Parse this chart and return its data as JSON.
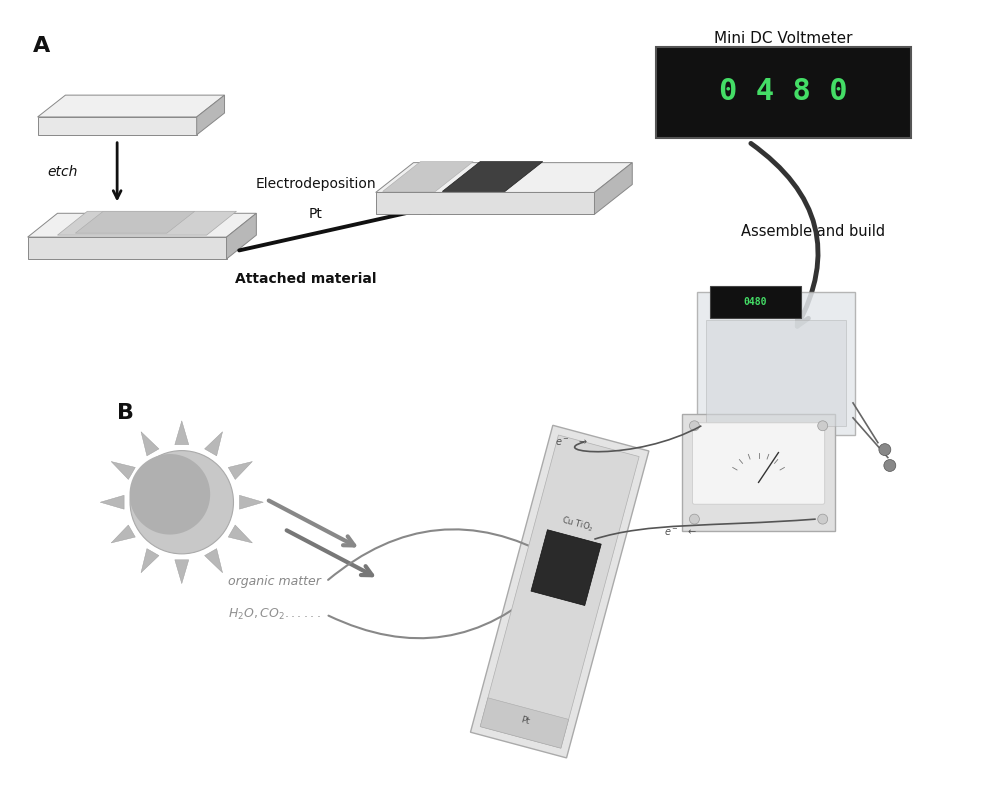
{
  "bg_color": "#ffffff",
  "label_A": "A",
  "label_B": "B",
  "text_electrodeposition": "Electrodeposition",
  "text_Pt": "Pt",
  "text_attached": "Attached material",
  "text_etch": "etch",
  "text_assemble": "Assemble and build",
  "text_voltmeter": "Mini DC Voltmeter",
  "text_organic": "organic matter",
  "text_h2o": "H₂O,CO₂......",
  "gray_lightest": "#f0f0f0",
  "gray_light": "#dcdcdc",
  "gray_medium": "#b8b8b8",
  "gray_dark": "#888888",
  "gray_darker": "#555555",
  "black": "#111111",
  "digit_color": "#44dd66"
}
